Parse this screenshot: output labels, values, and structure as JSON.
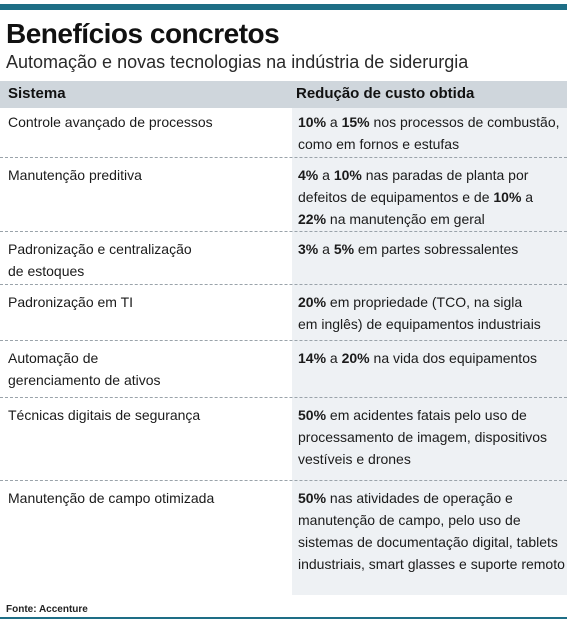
{
  "title": "Benefícios concretos",
  "subtitle": "Automação e novas tecnologias na indústria de siderurgia",
  "headers": {
    "system": "Sistema",
    "reduction": "Redução de custo obtida"
  },
  "rows": [
    {
      "system": [
        "Controle avançado de processos"
      ],
      "reduction": [
        [
          {
            "b": "10%"
          },
          {
            "t": " a "
          },
          {
            "b": "15%"
          },
          {
            "t": " nos processos de combustão,"
          }
        ],
        [
          {
            "t": "como em fornos e estufas"
          }
        ]
      ]
    },
    {
      "system": [
        "Manutenção preditiva"
      ],
      "reduction": [
        [
          {
            "b": "4%"
          },
          {
            "t": " a "
          },
          {
            "b": "10%"
          },
          {
            "t": " nas paradas de planta por"
          }
        ],
        [
          {
            "t": "defeitos de equipamentos e de "
          },
          {
            "b": "10%"
          },
          {
            "t": " a"
          }
        ],
        [
          {
            "b": "22%"
          },
          {
            "t": " na manutenção em geral"
          }
        ]
      ]
    },
    {
      "system": [
        "Padronização e centralização",
        "de estoques"
      ],
      "reduction": [
        [
          {
            "b": "3%"
          },
          {
            "t": " a "
          },
          {
            "b": "5%"
          },
          {
            "t": " em partes sobressalentes"
          }
        ]
      ]
    },
    {
      "system": [
        "Padronização em TI"
      ],
      "reduction": [
        [
          {
            "b": "20%"
          },
          {
            "t": " em propriedade (TCO, na sigla"
          }
        ],
        [
          {
            "t": "em inglês) de equipamentos industriais"
          }
        ]
      ]
    },
    {
      "system": [
        "Automação de",
        "gerenciamento de ativos"
      ],
      "reduction": [
        [
          {
            "b": "14%"
          },
          {
            "t": " a "
          },
          {
            "b": "20%"
          },
          {
            "t": " na vida dos equipamentos"
          }
        ]
      ]
    },
    {
      "system": [
        "Técnicas digitais de segurança"
      ],
      "reduction": [
        [
          {
            "b": "50%"
          },
          {
            "t": " em acidentes fatais pelo uso de"
          }
        ],
        [
          {
            "t": "processamento de imagem, dispositivos"
          }
        ],
        [
          {
            "t": "vestíveis e drones"
          }
        ]
      ]
    },
    {
      "system": [
        "Manutenção de campo otimizada"
      ],
      "reduction": [
        [
          {
            "b": "50%"
          },
          {
            "t": " nas atividades de operação e"
          }
        ],
        [
          {
            "t": "manutenção de campo, pelo uso de"
          }
        ],
        [
          {
            "t": "sistemas de documentação digital, tablets"
          }
        ],
        [
          {
            "t": "industriais, smart glasses e suporte remoto"
          }
        ]
      ]
    }
  ],
  "source": "Fonte: Accenture",
  "colors": {
    "accent": "#1e6e86",
    "header_bg": "#cfd6dc",
    "column_bg": "#eef1f4"
  }
}
